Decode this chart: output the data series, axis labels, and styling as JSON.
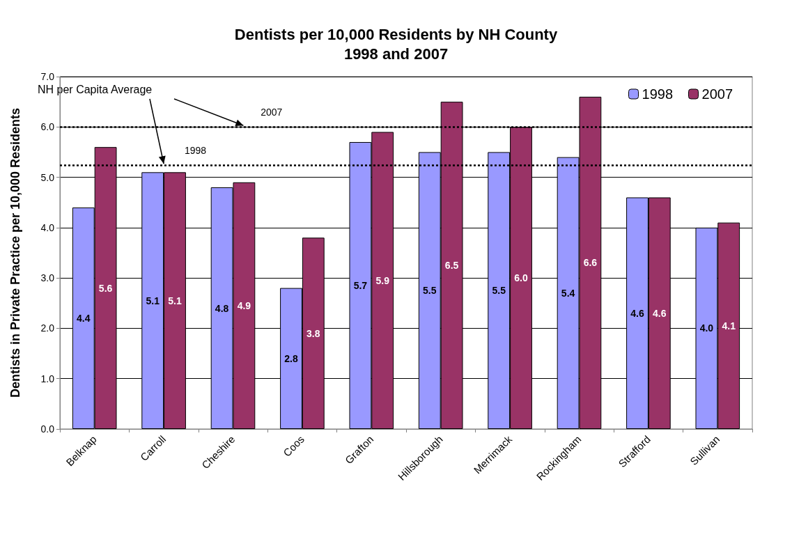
{
  "chart_data": {
    "type": "bar",
    "title": "Dentists per 10,000 Residents by NH County\n1998 and 2007",
    "ylabel": "Dentists in Private Practice per 10,000 Residents",
    "categories": [
      "Belknap",
      "Carroll",
      "Cheshire",
      "Coos",
      "Grafton",
      "Hillsborough",
      "Merrimack",
      "Rockingham",
      "Strafford",
      "Sullivan"
    ],
    "series": [
      {
        "name": "1998",
        "color": "#9999ff",
        "values": [
          4.4,
          5.1,
          4.8,
          2.8,
          5.7,
          5.5,
          5.5,
          5.4,
          4.6,
          4.0
        ],
        "value_labels": [
          "4.4",
          "5.1",
          "4.8",
          "2.8",
          "5.7",
          "5.5",
          "5.5",
          "5.4",
          "4.6",
          "4.0"
        ]
      },
      {
        "name": "2007",
        "color": "#993366",
        "values": [
          5.6,
          5.1,
          4.9,
          3.8,
          5.9,
          6.5,
          6.0,
          6.6,
          4.6,
          4.1
        ],
        "value_labels": [
          "5.6",
          "5.1",
          "4.9",
          "3.8",
          "5.9",
          "6.5",
          "6.0",
          "6.6",
          "4.6",
          "4.1"
        ]
      }
    ],
    "ylim": [
      0,
      7
    ],
    "yticks": [
      {
        "value": 0,
        "label": "0.0"
      },
      {
        "value": 1,
        "label": "1.0"
      },
      {
        "value": 2,
        "label": "2.0"
      },
      {
        "value": 3,
        "label": "3.0"
      },
      {
        "value": 4,
        "label": "4.0"
      },
      {
        "value": 5,
        "label": "5.0"
      },
      {
        "value": 6,
        "label": "6.0"
      },
      {
        "value": 7,
        "label": "7.0"
      }
    ],
    "ref_lines": [
      {
        "axis": "y",
        "value": 6.0,
        "color": "#000000",
        "line_style": "dotted"
      },
      {
        "axis": "y",
        "value": 5.24,
        "color": "#000000",
        "line_style": "dotted"
      }
    ],
    "annotations": [
      {
        "text": "NH per Capita Average",
        "x": "Carroll",
        "y": 5.24
      },
      {
        "text": "2007",
        "y": 6.0
      },
      {
        "text": "1998",
        "y": 5.24
      }
    ],
    "grid": "y",
    "legend": "top right"
  }
}
